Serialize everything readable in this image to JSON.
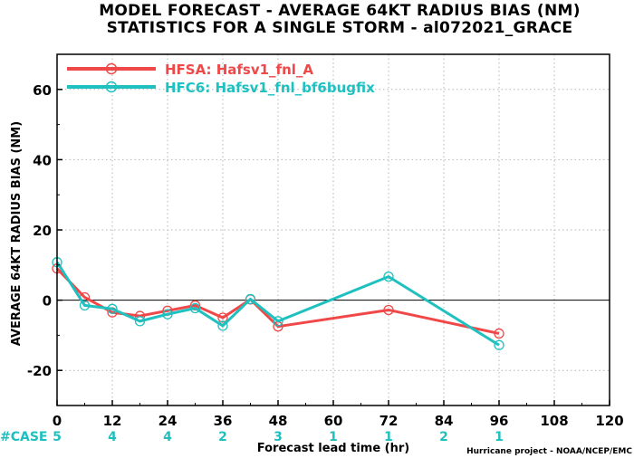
{
  "chart_data": {
    "type": "line",
    "title": "MODEL FORECAST - AVERAGE 64KT RADIUS BIAS (NM)",
    "subtitle": "STATISTICS FOR A SINGLE STORM - al072021_GRACE",
    "xlabel": "Forecast lead time (hr)",
    "ylabel": "AVERAGE 64KT RADIUS BIAS (NM)",
    "xlim": [
      0,
      120
    ],
    "ylim": [
      -30,
      70
    ],
    "x_ticks": [
      0,
      12,
      24,
      36,
      48,
      60,
      72,
      84,
      96,
      108,
      120
    ],
    "y_ticks": [
      -20,
      0,
      20,
      40,
      60
    ],
    "x_tick_labels": [
      "0",
      "12",
      "24",
      "36",
      "48",
      "60",
      "72",
      "84",
      "96",
      "108",
      "120"
    ],
    "y_tick_labels": [
      "-20",
      "0",
      "20",
      "40",
      "60"
    ],
    "grid": true,
    "zero_line": true,
    "legend_position": "top-left",
    "series": [
      {
        "name": "HFSA: Hafsv1_fnl_A",
        "color": "#f04848",
        "x": [
          0,
          6,
          12,
          18,
          24,
          30,
          36,
          42,
          48,
          72,
          96
        ],
        "y": [
          9,
          0.8,
          -3.5,
          -4.5,
          -3,
          -1.5,
          -5,
          0.2,
          -7.5,
          -2.8,
          -9.5
        ]
      },
      {
        "name": "HFC6: Hafsv1_fnl_bf6bugfix",
        "color": "#1fc0c0",
        "x": [
          0,
          6,
          12,
          18,
          24,
          30,
          36,
          42,
          48,
          72,
          96
        ],
        "y": [
          10.8,
          -1.5,
          -2.5,
          -6,
          -4,
          -2.3,
          -7.3,
          0.3,
          -6,
          6.7,
          -12.8
        ]
      }
    ],
    "case_label": "#CASE",
    "case_counts": [
      {
        "x": 0,
        "label": "5"
      },
      {
        "x": 12,
        "label": "4"
      },
      {
        "x": 24,
        "label": "4"
      },
      {
        "x": 36,
        "label": "2"
      },
      {
        "x": 48,
        "label": "3"
      },
      {
        "x": 60,
        "label": "1"
      },
      {
        "x": 72,
        "label": "1"
      },
      {
        "x": 84,
        "label": "2"
      },
      {
        "x": 96,
        "label": "1"
      }
    ],
    "credit": "Hurricane project - NOAA/NCEP/EMC"
  }
}
